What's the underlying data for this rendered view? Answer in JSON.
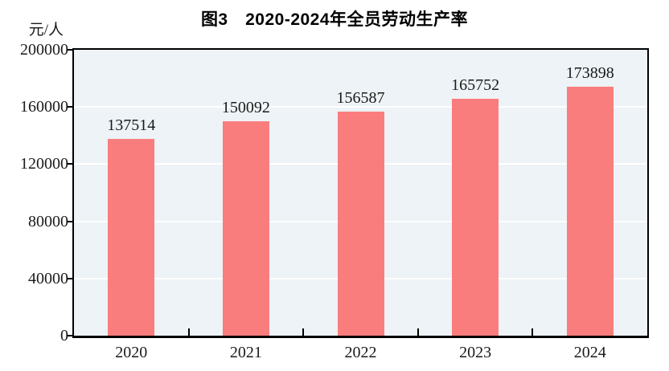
{
  "title": "图3　2020-2024年全员劳动生产率",
  "unit_label": "元/人",
  "colors": {
    "bar": "#fa7d7d",
    "plot_background": "#edf3f6",
    "gridline": "#ffffff",
    "axis_frame": "#000000",
    "text": "#1a1a1a",
    "title_text": "#000000",
    "page_background": "#ffffff"
  },
  "chart_data": {
    "type": "bar",
    "title": "图3　2020-2024年全员劳动生产率",
    "categories": [
      "2020",
      "2021",
      "2022",
      "2023",
      "2024"
    ],
    "values": [
      137514,
      150092,
      156587,
      165752,
      173898
    ],
    "data_labels": [
      "137514",
      "150092",
      "156587",
      "165752",
      "173898"
    ],
    "xlabel": "",
    "ylabel": "元/人",
    "ylim": [
      0,
      200000
    ],
    "yticks": [
      0,
      40000,
      80000,
      120000,
      160000,
      200000
    ],
    "ytick_labels": [
      "0",
      "40000",
      "80000",
      "120000",
      "160000",
      "200000"
    ],
    "grid": "horizontal",
    "legend": "none"
  }
}
